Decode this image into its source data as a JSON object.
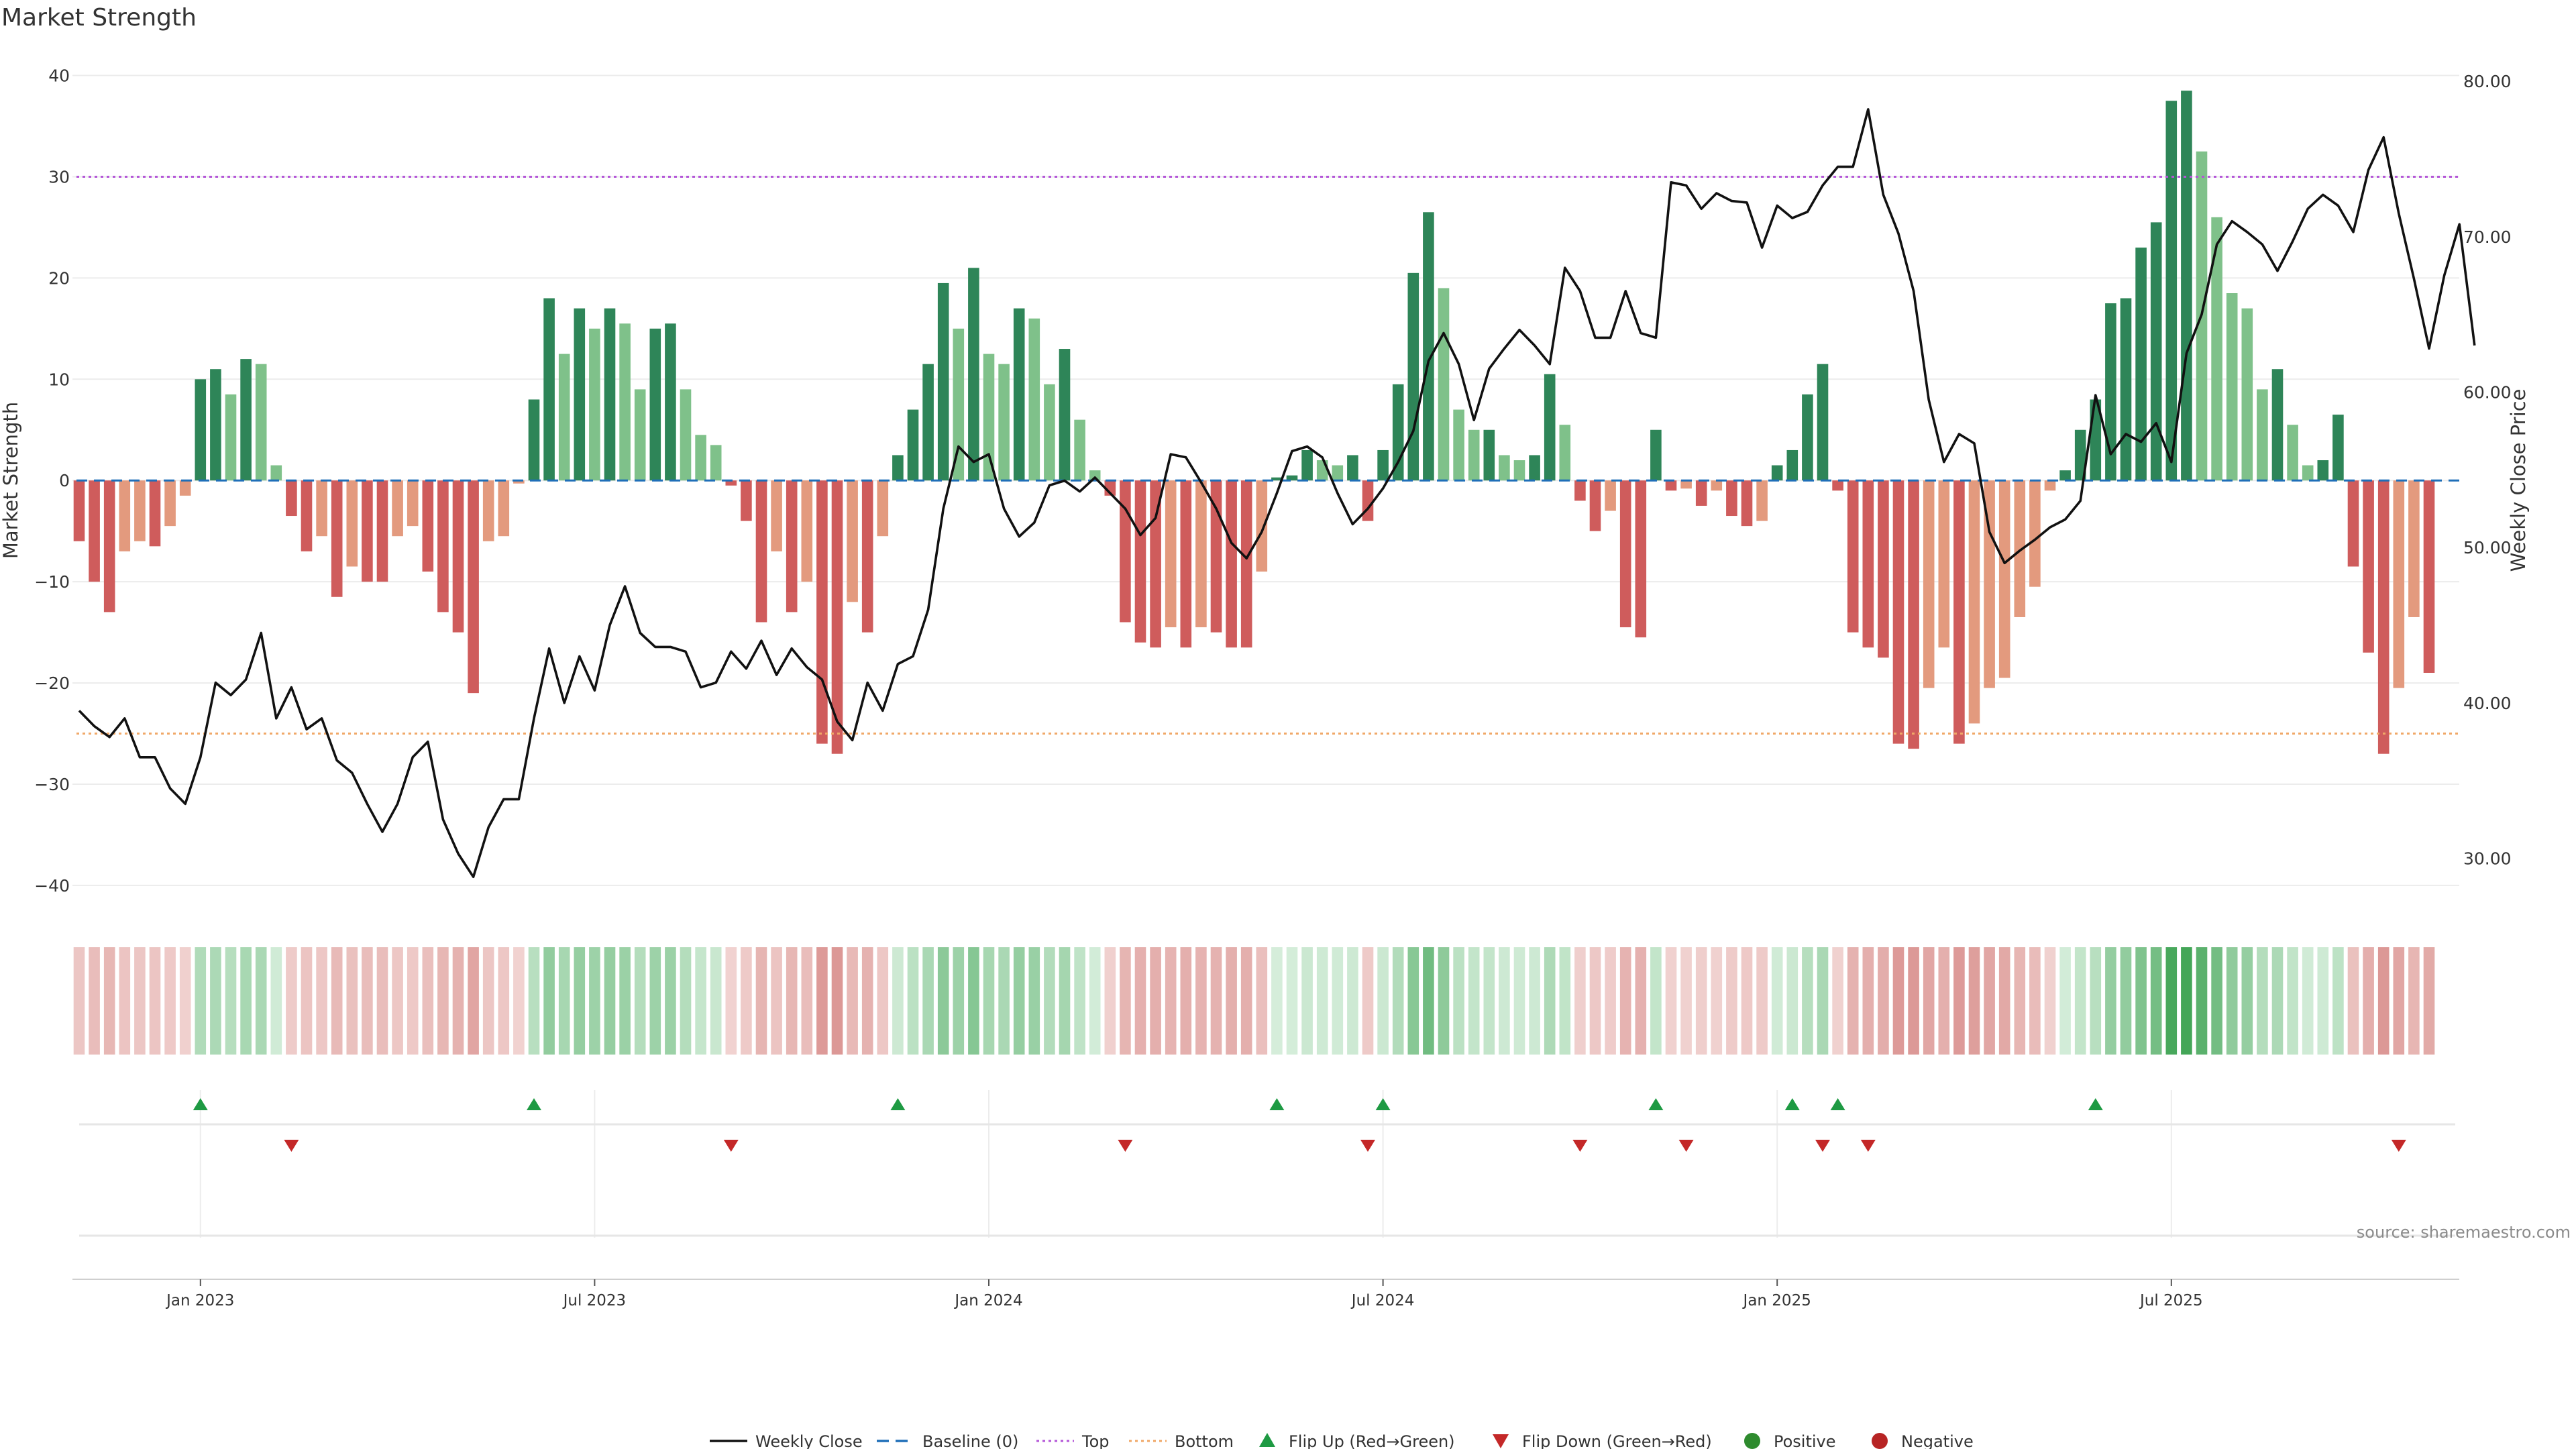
{
  "chart_data": {
    "type": "bar+line",
    "title": "Market Strength",
    "ylabel_left": "Market Strength",
    "ylabel_right": "Weekly Close Price",
    "yticks_left": [
      "40",
      "30",
      "20",
      "10",
      "0",
      "−10",
      "−20",
      "−30",
      "−40"
    ],
    "yticks_left_values": [
      40,
      30,
      20,
      10,
      0,
      -10,
      -20,
      -30,
      -40
    ],
    "yticks_right": [
      "80.00",
      "70.00",
      "60.00",
      "50.00",
      "40.00",
      "30.00"
    ],
    "yticks_right_values": [
      80,
      70,
      60,
      50,
      40,
      30
    ],
    "xticks": [
      "Jan 2023",
      "Jul 2023",
      "Jan 2024",
      "Jul 2024",
      "Jan 2025",
      "Jul 2025"
    ],
    "xticks_week_index": [
      8,
      34,
      60,
      86,
      112,
      138
    ],
    "top_level": 30,
    "bottom_level": -25,
    "ylim_left": [
      -41,
      40.5
    ],
    "ylim_right": [
      27.6,
      80.7
    ],
    "colors": {
      "pos_dark": "#2e8558",
      "pos_light": "#7fc18a",
      "neg_dark": "#cf5c5c",
      "neg_light": "#e39a7e",
      "price_line": "#111111",
      "top_line": "#b455d8",
      "bottom_line": "#f0a868",
      "baseline": "#1f6fb8",
      "flip_up": "#1e9a43",
      "flip_down": "#c42828"
    },
    "strength": [
      -6,
      -10,
      -13,
      -7,
      -6,
      -6.5,
      -4.5,
      -1.5,
      10,
      11,
      8.5,
      12,
      11.5,
      1.5,
      -3.5,
      -7,
      -5.5,
      -11.5,
      -8.5,
      -10,
      -10,
      -5.5,
      -4.5,
      -9,
      -13,
      -15,
      -21,
      -6,
      -5.5,
      -0.3,
      8,
      18,
      12.5,
      17,
      15,
      17,
      15.5,
      9,
      15,
      15.5,
      9,
      4.5,
      3.5,
      -0.5,
      -4,
      -14,
      -7,
      -13,
      -10,
      -26,
      -27,
      -12,
      -15,
      -5.5,
      2.5,
      7,
      11.5,
      19.5,
      15,
      21,
      12.5,
      11.5,
      17,
      16,
      9.5,
      13,
      6,
      1,
      -1.5,
      -14,
      -16,
      -16.5,
      -14.5,
      -16.5,
      -14.5,
      -15,
      -16.5,
      -16.5,
      -9,
      0.3,
      0.5,
      3,
      2,
      1.5,
      2.5,
      -4,
      3,
      9.5,
      20.5,
      26.5,
      19,
      7,
      5,
      5,
      2.5,
      2,
      2.5,
      10.5,
      5.5,
      -2,
      -5,
      -3,
      -14.5,
      -15.5,
      5,
      -1,
      -0.8,
      -2.5,
      -1,
      -3.5,
      -4.5,
      -4,
      1.5,
      3,
      8.5,
      11.5,
      -1,
      -15,
      -16.5,
      -17.5,
      -26,
      -26.5,
      -20.5,
      -16.5,
      -26,
      -24,
      -20.5,
      -19.5,
      -13.5,
      -10.5,
      -1,
      1,
      5,
      8,
      17.5,
      18,
      23,
      25.5,
      37.5,
      38.5,
      32.5,
      26,
      18.5,
      17,
      9,
      11,
      5.5,
      1.5,
      2,
      6.5,
      -8.5,
      -17,
      -27,
      -20.5,
      -13.5,
      -19
    ],
    "close": [
      39.5,
      38.5,
      37.8,
      39,
      36.5,
      36.5,
      34.5,
      33.5,
      36.5,
      41.3,
      40.5,
      41.5,
      44.5,
      39,
      41,
      38.3,
      39,
      36.3,
      35.5,
      33.5,
      31.7,
      33.5,
      36.5,
      37.5,
      32.5,
      30.3,
      28.8,
      32,
      33.8,
      33.8,
      39,
      43.5,
      40,
      43,
      40.8,
      45,
      47.5,
      44.5,
      43.6,
      43.6,
      43.3,
      41,
      41.3,
      43.3,
      42.2,
      44,
      41.8,
      43.5,
      42.3,
      41.5,
      38.8,
      37.6,
      41.3,
      39.5,
      42.5,
      43,
      46,
      52.5,
      56.5,
      55.5,
      56,
      52.5,
      50.7,
      51.6,
      54,
      54.3,
      53.6,
      54.5,
      53.5,
      52.5,
      50.8,
      51.9,
      56,
      55.8,
      54.2,
      52.5,
      50.3,
      49.3,
      51,
      53.5,
      56.2,
      56.5,
      55.8,
      53.5,
      51.5,
      52.5,
      53.8,
      55.5,
      57.5,
      62,
      63.8,
      61.8,
      58.2,
      61.5,
      62.8,
      64,
      63,
      61.8,
      68,
      66.5,
      63.5,
      63.5,
      66.5,
      63.8,
      63.5,
      73.5,
      73.3,
      71.8,
      72.8,
      72.3,
      72.2,
      69.3,
      72,
      71.2,
      71.6,
      73.3,
      74.5,
      74.5,
      78.2,
      72.7,
      70.2,
      66.5,
      59.5,
      55.5,
      57.3,
      56.7,
      51,
      49,
      49.8,
      50.5,
      51.3,
      51.8,
      53,
      59.8,
      56,
      57.3,
      56.8,
      58,
      55.5,
      62.5,
      65,
      69.5,
      71,
      70.3,
      69.5,
      67.8,
      69.7,
      71.8,
      72.7,
      72,
      70.3,
      74.3,
      76.4,
      71.5,
      67.3,
      62.8,
      67.5,
      70.8,
      63
    ],
    "flip_up_week_index": [
      8,
      30,
      54,
      79,
      86,
      104,
      113,
      116,
      133
    ],
    "flip_down_week_index": [
      14,
      43,
      69,
      85,
      99,
      106,
      115,
      118,
      153
    ],
    "legend": [
      {
        "label": "Weekly Close",
        "symbol": "line-solid"
      },
      {
        "label": "Baseline (0)",
        "symbol": "line-dash"
      },
      {
        "label": "Top",
        "symbol": "line-dot-purple"
      },
      {
        "label": "Bottom",
        "symbol": "line-dot-orange"
      },
      {
        "label": "Flip Up (Red→Green)",
        "symbol": "triangle-up"
      },
      {
        "label": "Flip Down (Green→Red)",
        "symbol": "triangle-down"
      },
      {
        "label": "Positive",
        "symbol": "dot-green"
      },
      {
        "label": "Negative",
        "symbol": "dot-red"
      }
    ],
    "source": "source: sharemaestro.com"
  }
}
